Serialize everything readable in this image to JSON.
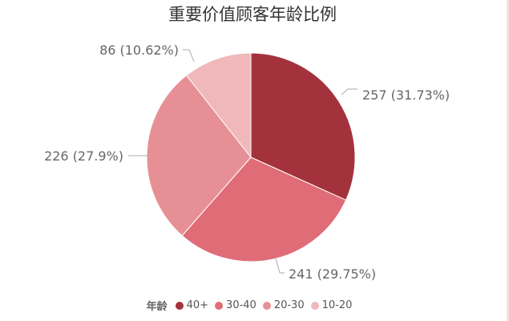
{
  "chart_data": {
    "type": "pie",
    "title": "重要价值顾客年龄比例",
    "legend_title": "年龄",
    "legend_placement": "bottom",
    "slices": [
      {
        "name": "40+",
        "value": 257,
        "percent": 31.73,
        "label": "257 (31.73%)",
        "color": "#a3323d"
      },
      {
        "name": "30-40",
        "value": 241,
        "percent": 29.75,
        "label": "241 (29.75%)",
        "color": "#e06c78"
      },
      {
        "name": "20-30",
        "value": 226,
        "percent": 27.9,
        "label": "226 (27.9%)",
        "color": "#e69096"
      },
      {
        "name": "10-20",
        "value": 86,
        "percent": 10.62,
        "label": "86 (10.62%)",
        "color": "#f0b8bb"
      }
    ]
  }
}
